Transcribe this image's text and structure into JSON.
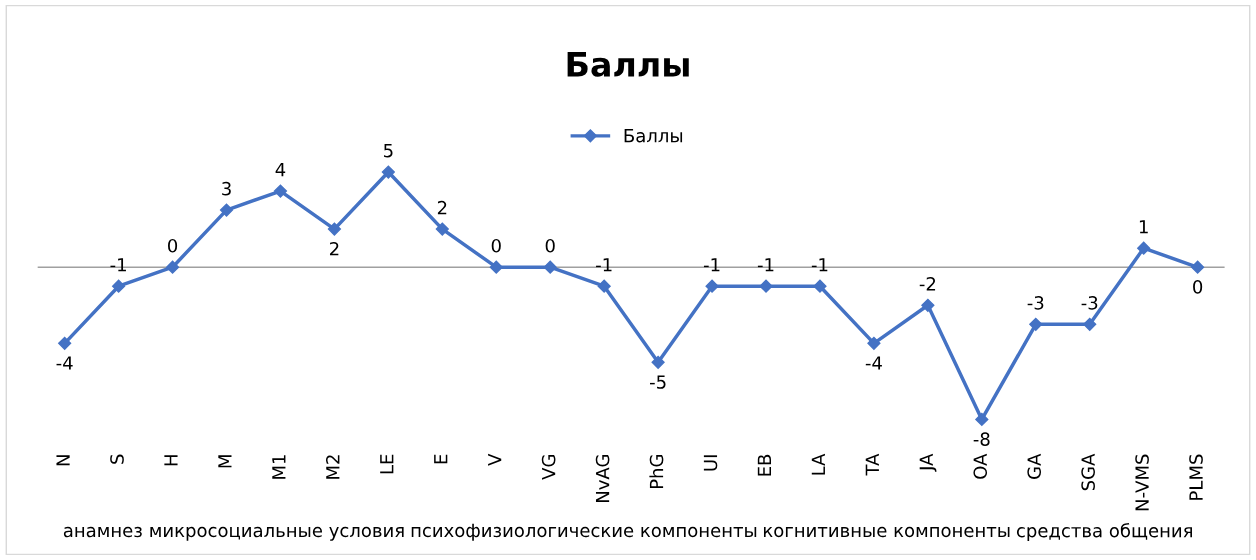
{
  "chart_data": {
    "type": "line",
    "title": "Баллы",
    "categories": [
      "N",
      "S",
      "H",
      "M",
      "M1",
      "M2",
      "LE",
      "E",
      "V",
      "VG",
      "NvAG",
      "PhG",
      "UI",
      "EB",
      "LA",
      "TA",
      "JA",
      "OA",
      "GA",
      "SGA",
      "N-VMS",
      "PLMS"
    ],
    "series": [
      {
        "name": "Баллы",
        "color": "#4472c4",
        "values": [
          -4,
          -1,
          0,
          3,
          4,
          2,
          5,
          2,
          0,
          0,
          -1,
          -5,
          -1,
          -1,
          -1,
          -4,
          -2,
          -8,
          -3,
          -3,
          1,
          0
        ]
      }
    ],
    "annotations": [
      "анамнез",
      "микросоциальные условия",
      "психофизиологические компоненты",
      "когнитивные компоненты",
      "средства общения"
    ],
    "data_labels": true,
    "marker": "diamond",
    "legend": "top",
    "grid": false
  }
}
